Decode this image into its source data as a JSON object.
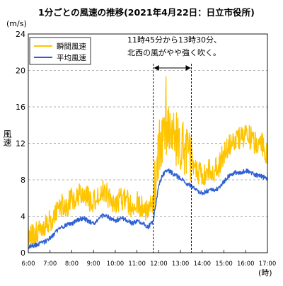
{
  "chart_data": {
    "type": "line",
    "title": "1分ごとの風速の推移(2021年4月22日：日立市役所)",
    "y_unit": "(m/s)",
    "ylabel": "風速",
    "x_unit": "(時)",
    "ylim": [
      0,
      24
    ],
    "yticks": [
      0,
      4,
      8,
      12,
      16,
      20,
      24
    ],
    "xlim": [
      "6:00",
      "17:00"
    ],
    "xticks": [
      "6:00",
      "7:00",
      "8:00",
      "9:00",
      "10:00",
      "11:00",
      "12:00",
      "13:00",
      "14:00",
      "15:00",
      "16:00",
      "17:00"
    ],
    "grid": "horizontal dashed",
    "legend": {
      "placement": "top-left"
    },
    "annotation": {
      "lines": [
        "11時45分から13時30分、",
        "北西の風がやや強く吹く。"
      ],
      "from": "11:45",
      "to": "13:30"
    },
    "sampling": "1-minute",
    "series": [
      {
        "name": "瞬間風速",
        "color": "#ffc400",
        "points": [
          [
            "6:00",
            1.5
          ],
          [
            "6:15",
            2.0
          ],
          [
            "6:30",
            2.2
          ],
          [
            "6:45",
            2.8
          ],
          [
            "7:00",
            3.5
          ],
          [
            "7:15",
            4.5
          ],
          [
            "7:30",
            5.2
          ],
          [
            "7:45",
            5.0
          ],
          [
            "8:00",
            6.0
          ],
          [
            "8:15",
            6.2
          ],
          [
            "8:30",
            6.5
          ],
          [
            "8:45",
            6.0
          ],
          [
            "9:00",
            5.5
          ],
          [
            "9:15",
            6.5
          ],
          [
            "9:30",
            6.8
          ],
          [
            "9:45",
            6.0
          ],
          [
            "10:00",
            5.5
          ],
          [
            "10:15",
            6.0
          ],
          [
            "10:30",
            5.8
          ],
          [
            "10:45",
            5.0
          ],
          [
            "11:00",
            5.5
          ],
          [
            "11:15",
            5.0
          ],
          [
            "11:30",
            4.5
          ],
          [
            "11:45",
            5.5
          ],
          [
            "12:00",
            11.5
          ],
          [
            "12:15",
            13.0
          ],
          [
            "12:30",
            13.5
          ],
          [
            "12:45",
            12.5
          ],
          [
            "13:00",
            12.0
          ],
          [
            "13:15",
            11.0
          ],
          [
            "13:30",
            10.5
          ],
          [
            "13:45",
            9.0
          ],
          [
            "14:00",
            8.5
          ],
          [
            "14:15",
            9.0
          ],
          [
            "14:30",
            9.0
          ],
          [
            "14:45",
            9.5
          ],
          [
            "15:00",
            11.0
          ],
          [
            "15:15",
            12.0
          ],
          [
            "15:30",
            12.5
          ],
          [
            "15:45",
            12.5
          ],
          [
            "16:00",
            13.0
          ],
          [
            "16:15",
            12.5
          ],
          [
            "16:30",
            12.0
          ],
          [
            "16:45",
            12.0
          ],
          [
            "17:00",
            10.5
          ]
        ],
        "peak": [
          "12:20",
          19.3
        ]
      },
      {
        "name": "平均風速",
        "color": "#2e5fd4",
        "points": [
          [
            "6:00",
            0.7
          ],
          [
            "6:15",
            0.8
          ],
          [
            "6:30",
            1.0
          ],
          [
            "6:45",
            1.2
          ],
          [
            "7:00",
            1.6
          ],
          [
            "7:15",
            2.2
          ],
          [
            "7:30",
            2.8
          ],
          [
            "7:45",
            3.0
          ],
          [
            "8:00",
            3.2
          ],
          [
            "8:15",
            3.5
          ],
          [
            "8:30",
            3.8
          ],
          [
            "8:45",
            3.5
          ],
          [
            "9:00",
            3.2
          ],
          [
            "9:15",
            3.8
          ],
          [
            "9:30",
            4.2
          ],
          [
            "9:45",
            3.8
          ],
          [
            "10:00",
            3.5
          ],
          [
            "10:15",
            3.8
          ],
          [
            "10:30",
            3.6
          ],
          [
            "10:45",
            3.2
          ],
          [
            "11:00",
            3.5
          ],
          [
            "11:15",
            3.2
          ],
          [
            "11:30",
            2.8
          ],
          [
            "11:45",
            3.5
          ],
          [
            "12:00",
            7.5
          ],
          [
            "12:15",
            8.8
          ],
          [
            "12:30",
            9.0
          ],
          [
            "12:45",
            8.5
          ],
          [
            "13:00",
            8.2
          ],
          [
            "13:15",
            7.6
          ],
          [
            "13:30",
            7.3
          ],
          [
            "13:45",
            6.8
          ],
          [
            "14:00",
            6.5
          ],
          [
            "14:15",
            6.8
          ],
          [
            "14:30",
            6.9
          ],
          [
            "14:45",
            7.0
          ],
          [
            "15:00",
            7.8
          ],
          [
            "15:15",
            8.5
          ],
          [
            "15:30",
            8.8
          ],
          [
            "15:45",
            8.8
          ],
          [
            "16:00",
            9.0
          ],
          [
            "16:15",
            8.8
          ],
          [
            "16:30",
            8.5
          ],
          [
            "16:45",
            8.4
          ],
          [
            "17:00",
            8.0
          ]
        ]
      }
    ]
  }
}
